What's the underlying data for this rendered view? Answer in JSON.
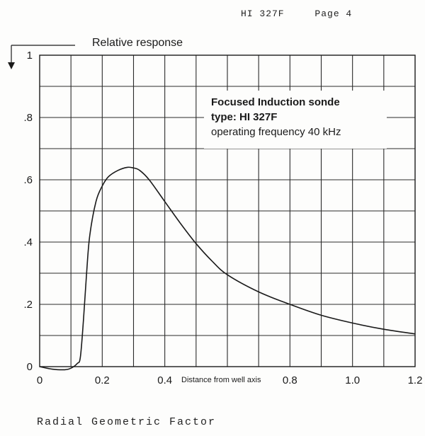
{
  "header": {
    "doc": "HI 327F",
    "page": "Page 4"
  },
  "footer": {
    "caption": "Radial Geometric Factor"
  },
  "legend": {
    "line1": "Focused Induction sonde",
    "line2": "type: HI 327F",
    "line3": "operating frequency 40 kHz"
  },
  "chart_data": {
    "type": "line",
    "title": "",
    "ylabel": "Relative response",
    "xlabel": "Distance from well axis",
    "xlim": [
      0,
      1.2
    ],
    "ylim": [
      0,
      1.0
    ],
    "x_ticks": [
      "0",
      "0.2",
      "0.4",
      "0.8",
      "1.0",
      "1.2"
    ],
    "x_tick_values": [
      0,
      0.2,
      0.4,
      0.8,
      1.0,
      1.2
    ],
    "y_ticks": [
      "0",
      ".2",
      ".4",
      ".6",
      ".8",
      "1"
    ],
    "y_tick_values": [
      0,
      0.2,
      0.4,
      0.6,
      0.8,
      1.0
    ],
    "grid": true,
    "line_color": "#1a1a1a",
    "series": [
      {
        "x": [
          0,
          0.04,
          0.08,
          0.1,
          0.12,
          0.13,
          0.14,
          0.15,
          0.16,
          0.18,
          0.2,
          0.22,
          0.25,
          0.28,
          0.3,
          0.32,
          0.35,
          0.4,
          0.45,
          0.5,
          0.55,
          0.6,
          0.7,
          0.8,
          0.9,
          1.0,
          1.1,
          1.2
        ],
        "y": [
          0,
          -0.008,
          -0.01,
          -0.005,
          0.01,
          0.03,
          0.15,
          0.3,
          0.42,
          0.53,
          0.58,
          0.61,
          0.63,
          0.64,
          0.638,
          0.63,
          0.6,
          0.53,
          0.46,
          0.395,
          0.34,
          0.295,
          0.24,
          0.2,
          0.165,
          0.14,
          0.12,
          0.105
        ]
      }
    ]
  }
}
